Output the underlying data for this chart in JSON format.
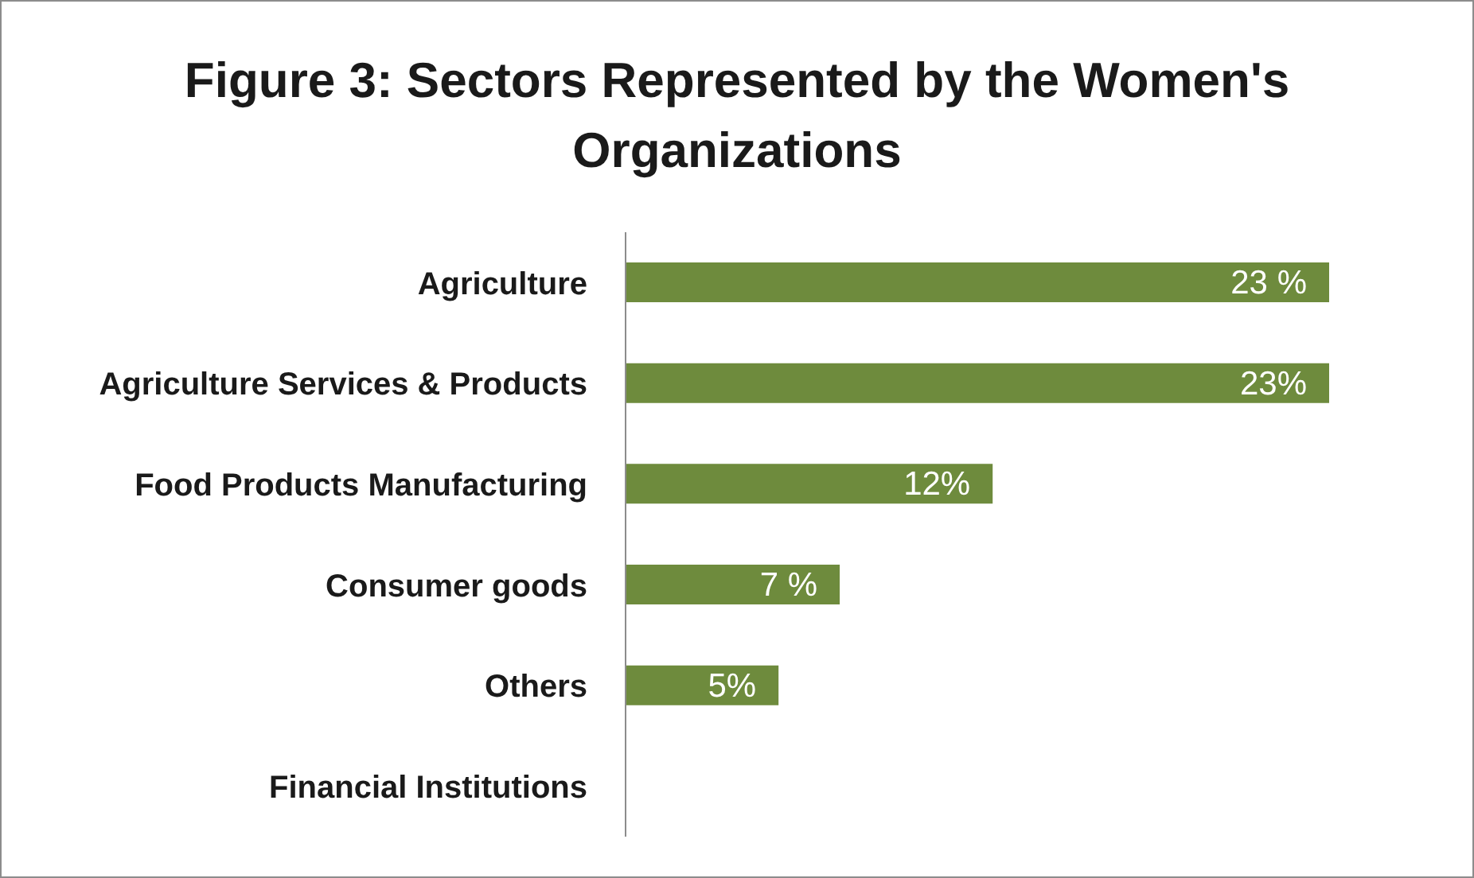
{
  "chart_data": {
    "type": "bar",
    "orientation": "horizontal",
    "title": "Figure 3: Sectors Represented by the Women's Organizations",
    "categories": [
      "Agriculture",
      "Agriculture Services & Products",
      "Food Products Manufacturing",
      "Consumer goods",
      "Others",
      "Financial Institutions"
    ],
    "values": [
      23,
      23,
      12,
      7,
      5,
      0
    ],
    "value_labels": [
      "23 %",
      "23%",
      "12%",
      "7 %",
      "5%",
      null
    ],
    "color": "#6e8b3d"
  }
}
